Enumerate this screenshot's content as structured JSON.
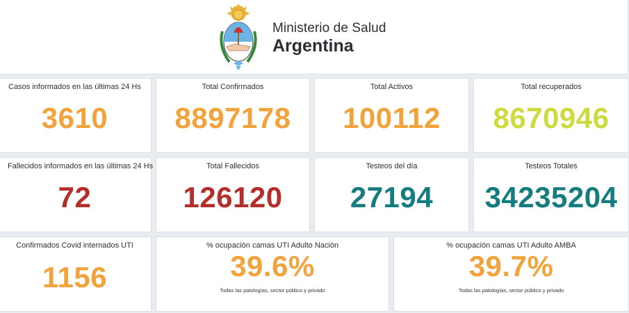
{
  "header": {
    "ministry_line1": "Ministerio de Salud",
    "ministry_line2": "Argentina"
  },
  "colors": {
    "orange": "#f2a33b",
    "lime": "#cddb3f",
    "red": "#b22f2c",
    "teal": "#157d7f"
  },
  "cards": {
    "cases_24h": {
      "label": "Casos informados en las últimas 24 Hs",
      "value": "3610"
    },
    "total_confirmed": {
      "label": "Total Confirmados",
      "value": "8897178"
    },
    "total_active": {
      "label": "Total Activos",
      "value": "100112"
    },
    "total_recovered": {
      "label": "Total recuperados",
      "value": "8670946"
    },
    "deaths_recent": {
      "label": "Fallecidos informados en las últimas 24 Hs",
      "value": "72"
    },
    "total_deaths": {
      "label": "Total Fallecidos",
      "value": "126120"
    },
    "tests_day": {
      "label": "Testeos del día",
      "value": "27194"
    },
    "tests_total": {
      "label": "Testeos Totales",
      "value": "34235204"
    },
    "icu_covid": {
      "label": "Confirmados Covid internados UTI",
      "value": "1156"
    },
    "icu_nation": {
      "label": "% ocupación camas UTI Adulto Nación",
      "value": "39.6%",
      "note": "Todas las patologías, sector público y privado"
    },
    "icu_amba": {
      "label": "% ocupación camas UTI Adulto AMBA",
      "value": "39.7%",
      "note": "Todas las patologías, sector público y privado"
    }
  }
}
